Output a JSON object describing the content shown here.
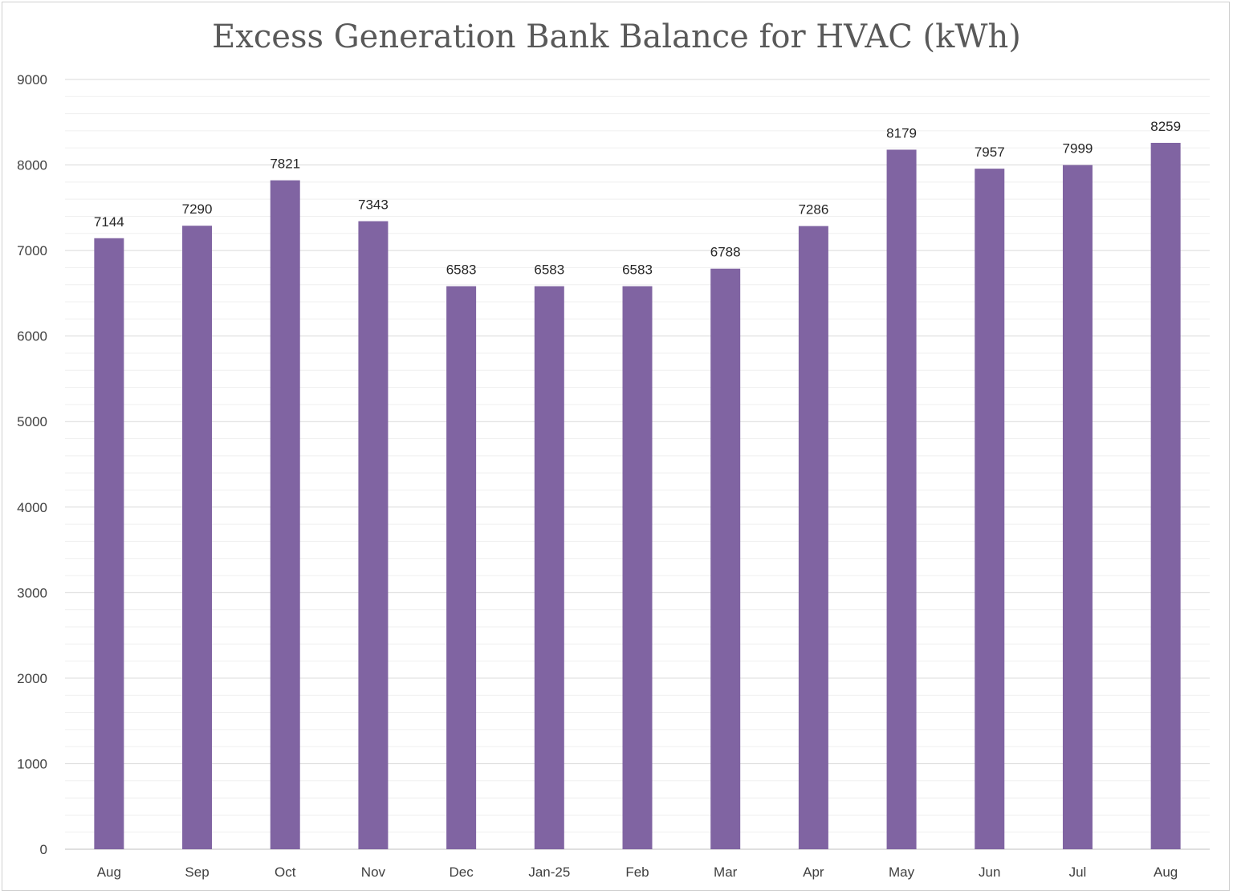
{
  "chart_data": {
    "type": "bar",
    "title": "Excess Generation Bank Balance for HVAC (kWh)",
    "xlabel": "",
    "ylabel": "",
    "categories": [
      "Aug",
      "Sep",
      "Oct",
      "Nov",
      "Dec",
      "Jan-25",
      "Feb",
      "Mar",
      "Apr",
      "May",
      "Jun",
      "Jul",
      "Aug"
    ],
    "values": [
      7144,
      7290,
      7821,
      7343,
      6583,
      6583,
      6583,
      6788,
      7286,
      8179,
      7957,
      7999,
      8259
    ],
    "data_labels": [
      "7144",
      "7290",
      "7821",
      "7343",
      "6583",
      "6583",
      "6583",
      "6788",
      "7286",
      "8179",
      "7957",
      "7999",
      "8259"
    ],
    "ylim": [
      0,
      9000
    ],
    "yticks": [
      "0",
      "1000",
      "2000",
      "3000",
      "4000",
      "5000",
      "6000",
      "7000",
      "8000",
      "9000"
    ],
    "ytick_values": [
      0,
      1000,
      2000,
      3000,
      4000,
      5000,
      6000,
      7000,
      8000,
      9000
    ],
    "minor_gridlines": true,
    "grid": true,
    "legend": "none",
    "colors": {
      "bar": "#8064a2",
      "major_grid": "#d9d9d9",
      "minor_grid": "#efefef",
      "title": "#595959"
    }
  }
}
